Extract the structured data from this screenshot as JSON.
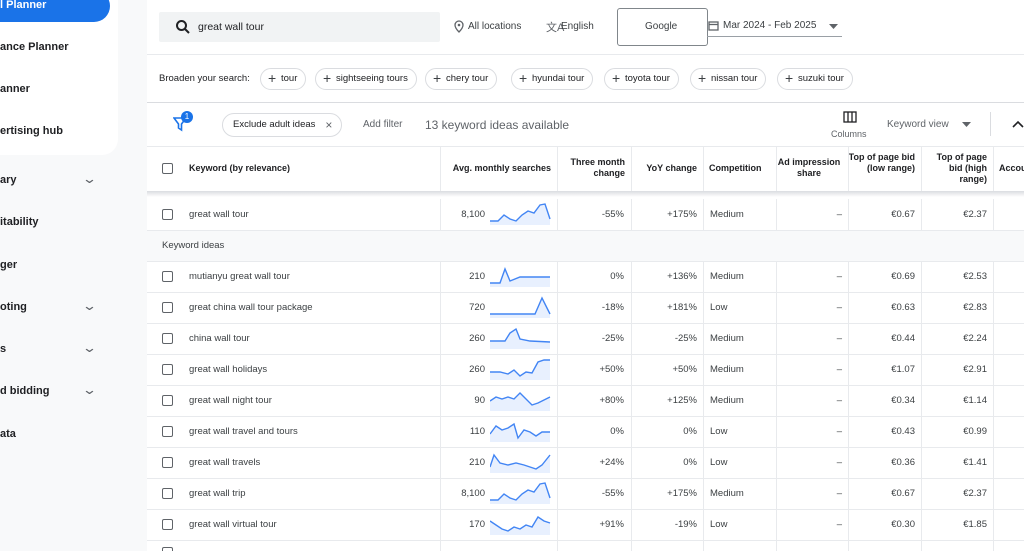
{
  "sidebar": {
    "items": [
      "l Planner",
      "ance Planner",
      "anner",
      "ertising hub",
      "ary",
      "itability",
      "ger",
      "oting",
      "s",
      "d bidding",
      "ata"
    ]
  },
  "search": {
    "query": "great wall tour",
    "location": "All locations",
    "language": "English",
    "network": "Google",
    "date_range": "Mar 2024 - Feb 2025"
  },
  "broaden": {
    "label": "Broaden your search:",
    "chips": [
      "tour",
      "sightseeing tours",
      "chery tour",
      "hyundai tour",
      "toyota tour",
      "nissan tour",
      "suzuki tour"
    ]
  },
  "filters": {
    "badge": "1",
    "chip": "Exclude adult ideas",
    "add_filter": "Add filter",
    "count_text": "13 keyword ideas available",
    "columns": "Columns",
    "view": "Keyword view"
  },
  "table": {
    "columns": [
      "Keyword (by relevance)",
      "Avg. monthly searches",
      "Three month change",
      "YoY change",
      "Competition",
      "Ad impression share",
      "Top of page bid (low range)",
      "Top of page bid (high range)",
      "Accou"
    ],
    "searched_rows": [
      [
        "great wall tour",
        "8,100",
        "-55%",
        "+175%",
        "Medium",
        "–",
        "€0.67",
        "€2.37"
      ]
    ],
    "section_label": "Keyword ideas",
    "rows": [
      [
        "mutianyu great wall tour",
        "210",
        "0%",
        "+136%",
        "Medium",
        "–",
        "€0.69",
        "€2.53"
      ],
      [
        "great china wall tour package",
        "720",
        "-18%",
        "+181%",
        "Low",
        "–",
        "€0.63",
        "€2.83"
      ],
      [
        "china wall tour",
        "260",
        "-25%",
        "-25%",
        "Medium",
        "–",
        "€0.44",
        "€2.24"
      ],
      [
        "great wall holidays",
        "260",
        "+50%",
        "+50%",
        "Medium",
        "–",
        "€1.07",
        "€2.91"
      ],
      [
        "great wall night tour",
        "90",
        "+80%",
        "+125%",
        "Medium",
        "–",
        "€0.34",
        "€1.14"
      ],
      [
        "great wall travel and tours",
        "110",
        "0%",
        "0%",
        "Low",
        "–",
        "€0.43",
        "€0.99"
      ],
      [
        "great wall travels",
        "210",
        "+24%",
        "0%",
        "Low",
        "–",
        "€0.36",
        "€1.41"
      ],
      [
        "great wall trip",
        "8,100",
        "-55%",
        "+175%",
        "Medium",
        "–",
        "€0.67",
        "€2.37"
      ],
      [
        "great wall virtual tour",
        "170",
        "+91%",
        "-19%",
        "Low",
        "–",
        "€0.30",
        "€1.85"
      ]
    ]
  }
}
